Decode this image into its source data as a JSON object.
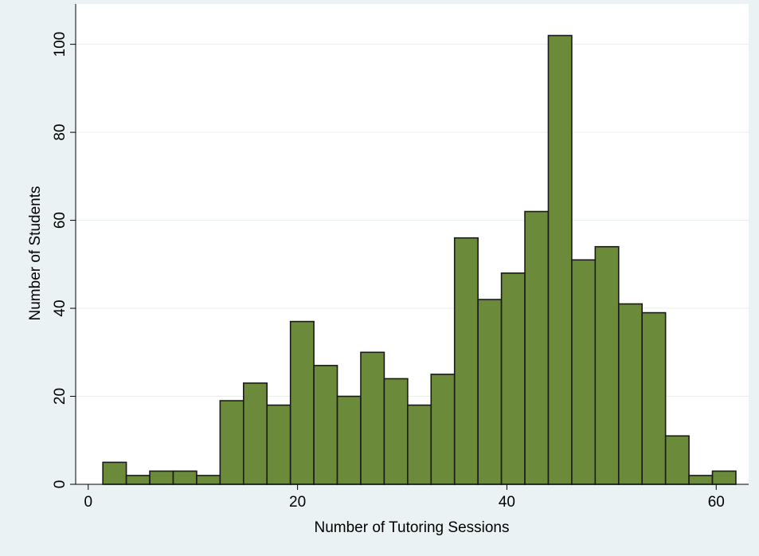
{
  "chart_data": {
    "type": "histogram",
    "x_label": "Number of Tutoring Sessions",
    "y_label": "Number of Students",
    "bins": [
      1.4,
      3.64,
      5.88,
      8.12,
      10.36,
      12.6,
      14.84,
      17.08,
      19.32,
      21.56,
      23.8,
      26.04,
      28.28,
      30.52,
      32.76,
      35,
      37.24,
      39.48,
      41.72,
      43.96,
      46.2,
      48.44,
      50.68,
      52.92,
      55.16,
      57.4,
      59.64,
      61.88
    ],
    "values": [
      5,
      2,
      3,
      3,
      2,
      19,
      23,
      18,
      37,
      27,
      20,
      30,
      24,
      18,
      25,
      56,
      42,
      48,
      62,
      102,
      51,
      54,
      41,
      39,
      11,
      2,
      3
    ],
    "color": "#6b8a3a",
    "xlim": [
      -1.2,
      63.1
    ],
    "xticks": [
      0,
      20,
      40,
      60
    ],
    "ylim": [
      0,
      105
    ],
    "yticks": [
      0,
      20,
      40,
      60,
      80,
      100
    ],
    "grid": true
  }
}
